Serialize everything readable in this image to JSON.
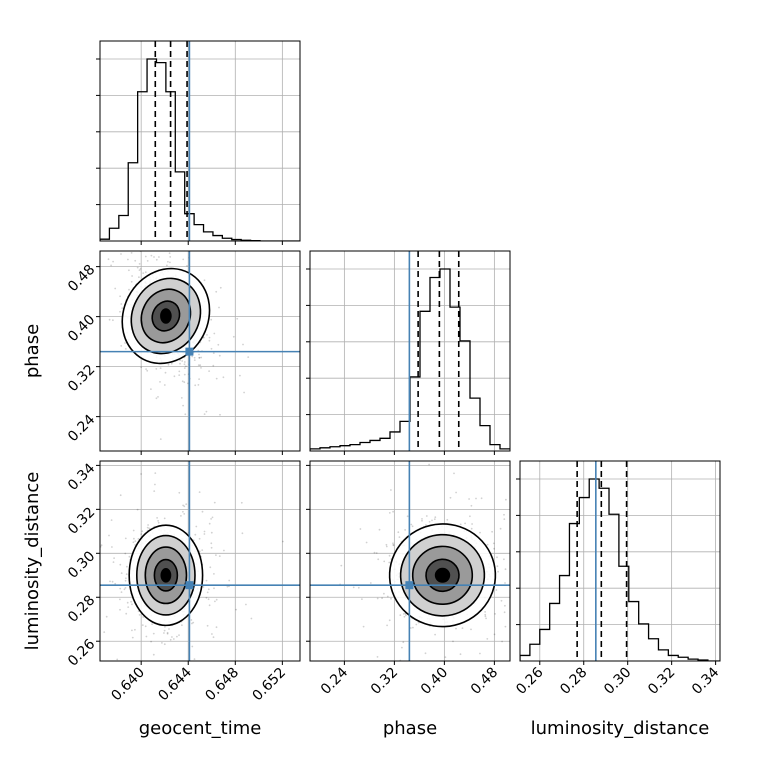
{
  "chart_data": {
    "type": "corner",
    "colors": {
      "truth": "#4682b4",
      "line": "#000000",
      "grid": "#b0b0b0",
      "density": "#000000"
    },
    "grid": true,
    "parameters": [
      {
        "name": "geocent_time",
        "xlabel": "geocent_time",
        "range": [
          0.6365,
          0.6535
        ],
        "ticks": [
          0.64,
          0.644,
          0.648,
          0.652
        ],
        "tick_labels": [
          "0.640",
          "0.644",
          "0.648",
          "0.652"
        ],
        "truth": 0.6441,
        "quantiles": [
          0.6412,
          0.6425,
          0.6439
        ],
        "hist_edges": [
          0.6365,
          0.6373,
          0.6381,
          0.6389,
          0.6397,
          0.6405,
          0.6413,
          0.6421,
          0.6429,
          0.6437,
          0.6445,
          0.6453,
          0.6461,
          0.6469,
          0.6477,
          0.6485,
          0.6493,
          0.6501,
          0.6509,
          0.6517,
          0.6525,
          0.6535
        ],
        "hist_counts": [
          1,
          7,
          14,
          43,
          82,
          100,
          98,
          82,
          38,
          15,
          9,
          5,
          3,
          1.5,
          0.8,
          0.4,
          0.2,
          0,
          0,
          0,
          0
        ]
      },
      {
        "name": "phase",
        "xlabel": "phase",
        "ylabel": "phase",
        "range": [
          0.185,
          0.505
        ],
        "ticks": [
          0.24,
          0.32,
          0.4,
          0.48
        ],
        "tick_labels": [
          "0.24",
          "0.32",
          "0.40",
          "0.48"
        ],
        "truth": 0.344,
        "quantiles": [
          0.358,
          0.392,
          0.423
        ],
        "hist_edges": [
          0.185,
          0.201,
          0.217,
          0.233,
          0.249,
          0.265,
          0.281,
          0.297,
          0.313,
          0.329,
          0.345,
          0.361,
          0.377,
          0.393,
          0.409,
          0.425,
          0.441,
          0.457,
          0.473,
          0.489,
          0.505
        ],
        "hist_counts": [
          1,
          1.5,
          2,
          2.5,
          3,
          4,
          5,
          6,
          9,
          14,
          35,
          66,
          82,
          86,
          68,
          52,
          25,
          12,
          3,
          1
        ]
      },
      {
        "name": "luminosity_distance",
        "xlabel": "luminosity_distance",
        "ylabel": "luminosity_distance",
        "range": [
          0.251,
          0.342
        ],
        "ticks": [
          0.26,
          0.28,
          0.3,
          0.32,
          0.34
        ],
        "tick_labels": [
          "0.26",
          "0.28",
          "0.30",
          "0.32",
          "0.34"
        ],
        "truth": 0.2855,
        "quantiles": [
          0.277,
          0.288,
          0.2995
        ],
        "hist_edges": [
          0.251,
          0.2555,
          0.26,
          0.2645,
          0.269,
          0.2735,
          0.278,
          0.2825,
          0.287,
          0.2915,
          0.296,
          0.3005,
          0.305,
          0.3095,
          0.314,
          0.3185,
          0.323,
          0.3275,
          0.332,
          0.3365,
          0.342
        ],
        "hist_counts": [
          3,
          9,
          17,
          31,
          46,
          74,
          88,
          98,
          93,
          79,
          51,
          32,
          20,
          12,
          6,
          3,
          2,
          1,
          0.5,
          0
        ]
      }
    ],
    "pairs": [
      {
        "x": "geocent_time",
        "y": "phase",
        "peak": [
          0.6421,
          0.401
        ],
        "sd": [
          0.0014,
          0.035
        ],
        "corr": -0.45,
        "truth": [
          0.6441,
          0.344
        ]
      },
      {
        "x": "geocent_time",
        "y": "luminosity_distance",
        "peak": [
          0.6421,
          0.29
        ],
        "sd": [
          0.0013,
          0.0095
        ],
        "corr": 0.0,
        "truth": [
          0.6441,
          0.2855
        ]
      },
      {
        "x": "phase",
        "y": "luminosity_distance",
        "peak": [
          0.397,
          0.29
        ],
        "sd": [
          0.035,
          0.0098
        ],
        "corr": 0.05,
        "truth": [
          0.344,
          0.2855
        ]
      }
    ]
  }
}
